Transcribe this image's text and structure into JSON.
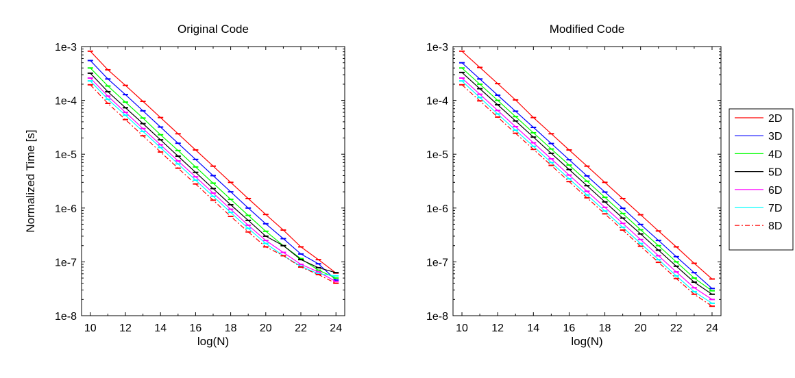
{
  "chart_data": [
    {
      "type": "line",
      "title": "Original Code",
      "xlabel": "log(N)",
      "ylabel": "Normalized Time [s]",
      "xlim": [
        9.5,
        24.5
      ],
      "ylim": [
        1e-08,
        0.001
      ],
      "yscale": "log",
      "xticks": [
        10,
        12,
        14,
        16,
        18,
        20,
        22,
        24
      ],
      "xtick_labels": [
        "10",
        "12",
        "14",
        "16",
        "18",
        "20",
        "22",
        "24"
      ],
      "yticks": [
        0.001,
        0.0001,
        1e-05,
        1e-06,
        1e-07,
        1e-08
      ],
      "ytick_labels": [
        "1e-3",
        "1e-4",
        "1e-5",
        "1e-6",
        "1e-7",
        "1e-8"
      ],
      "grid": false,
      "error_bars": true,
      "x": [
        10,
        11,
        12,
        13,
        14,
        15,
        16,
        17,
        18,
        19,
        20,
        21,
        22,
        23,
        24
      ],
      "series": [
        {
          "name": "2D",
          "color": "#ff0000",
          "dash": "solid",
          "values": [
            0.00082,
            0.00037,
            0.00019,
            9.6e-05,
            4.8e-05,
            2.4e-05,
            1.2e-05,
            6e-06,
            3e-06,
            1.5e-06,
            7.6e-07,
            3.9e-07,
            1.9e-07,
            1.1e-07,
            6.2e-08
          ]
        },
        {
          "name": "3D",
          "color": "#0000ff",
          "dash": "solid",
          "values": [
            0.00055,
            0.00025,
            0.000128,
            6.4e-05,
            3.2e-05,
            1.6e-05,
            8e-06,
            4e-06,
            2e-06,
            1e-06,
            5.1e-07,
            2.7e-07,
            1.4e-07,
            9.2e-08,
            4.6e-08
          ]
        },
        {
          "name": "4D",
          "color": "#00ff00",
          "dash": "solid",
          "values": [
            0.0004,
            0.000185,
            9.3e-05,
            4.7e-05,
            2.3e-05,
            1.17e-05,
            5.8e-06,
            2.9e-06,
            1.45e-06,
            7.3e-07,
            3.7e-07,
            2e-07,
            1.15e-07,
            7e-08,
            5e-08
          ]
        },
        {
          "name": "5D",
          "color": "#000000",
          "dash": "solid",
          "values": [
            0.00032,
            0.000145,
            7.3e-05,
            3.7e-05,
            1.85e-05,
            9.2e-06,
            4.6e-06,
            2.3e-06,
            1.15e-06,
            5.9e-07,
            3e-07,
            2e-07,
            1.1e-07,
            7.8e-08,
            6.3e-08
          ]
        },
        {
          "name": "6D",
          "color": "#ff00ff",
          "dash": "solid",
          "values": [
            0.00026,
            0.00012,
            6e-05,
            3e-05,
            1.5e-05,
            7.5e-06,
            3.8e-06,
            1.9e-06,
            9.5e-07,
            4.8e-07,
            2.5e-07,
            1.5e-07,
            9e-08,
            6.5e-08,
            4.3e-08
          ]
        },
        {
          "name": "7D",
          "color": "#00ffff",
          "dash": "solid",
          "values": [
            0.00023,
            0.000105,
            5.3e-05,
            2.65e-05,
            1.33e-05,
            6.6e-06,
            3.3e-06,
            1.65e-06,
            8.3e-07,
            4.2e-07,
            2.2e-07,
            1.3e-07,
            8.3e-08,
            6e-08,
            5.5e-08
          ]
        },
        {
          "name": "8D",
          "color": "#ff0000",
          "dash": "dashdot",
          "values": [
            0.000195,
            8.8e-05,
            4.4e-05,
            2.2e-05,
            1.1e-05,
            5.5e-06,
            2.8e-06,
            1.4e-06,
            7e-07,
            3.6e-07,
            1.9e-07,
            1.3e-07,
            8e-08,
            5.8e-08,
            4e-08
          ]
        }
      ]
    },
    {
      "type": "line",
      "title": "Modified Code",
      "xlabel": "log(N)",
      "ylabel": "",
      "xlim": [
        9.5,
        24.5
      ],
      "ylim": [
        1e-08,
        0.001
      ],
      "yscale": "log",
      "xticks": [
        10,
        12,
        14,
        16,
        18,
        20,
        22,
        24
      ],
      "xtick_labels": [
        "10",
        "12",
        "14",
        "16",
        "18",
        "20",
        "22",
        "24"
      ],
      "yticks": [
        0.001,
        0.0001,
        1e-05,
        1e-06,
        1e-07,
        1e-08
      ],
      "ytick_labels": [
        "1e-3",
        "1e-4",
        "1e-5",
        "1e-6",
        "1e-7",
        "1e-8"
      ],
      "grid": false,
      "error_bars": true,
      "legend": "outside-right",
      "x": [
        10,
        11,
        12,
        13,
        14,
        15,
        16,
        17,
        18,
        19,
        20,
        21,
        22,
        23,
        24
      ],
      "series": [
        {
          "name": "2D",
          "color": "#ff0000",
          "dash": "solid",
          "values": [
            0.00082,
            0.00041,
            0.000205,
            0.000102,
            4.8e-05,
            2.4e-05,
            1.2e-05,
            6e-06,
            3e-06,
            1.5e-06,
            7.5e-07,
            3.75e-07,
            1.9e-07,
            9.4e-08,
            4.8e-08
          ]
        },
        {
          "name": "3D",
          "color": "#0000ff",
          "dash": "solid",
          "values": [
            0.0005,
            0.00025,
            0.000125,
            6.3e-05,
            3.15e-05,
            1.58e-05,
            7.9e-06,
            3.95e-06,
            1.98e-06,
            9.9e-07,
            4.95e-07,
            2.5e-07,
            1.25e-07,
            6.3e-08,
            3.2e-08
          ]
        },
        {
          "name": "4D",
          "color": "#00ff00",
          "dash": "solid",
          "values": [
            0.0004,
            0.0002,
            0.0001,
            5e-05,
            2.5e-05,
            1.25e-05,
            6.3e-06,
            3.15e-06,
            1.58e-06,
            7.9e-07,
            3.95e-07,
            2e-07,
            1e-07,
            5e-08,
            2.9e-08
          ]
        },
        {
          "name": "5D",
          "color": "#000000",
          "dash": "solid",
          "values": [
            0.00033,
            0.000165,
            8.3e-05,
            4.15e-05,
            2.08e-05,
            1.04e-05,
            5.2e-06,
            2.6e-06,
            1.3e-06,
            6.5e-07,
            3.3e-07,
            1.65e-07,
            8.3e-08,
            4.2e-08,
            2.5e-08
          ]
        },
        {
          "name": "6D",
          "color": "#ff00ff",
          "dash": "solid",
          "values": [
            0.00026,
            0.00013,
            6.5e-05,
            3.25e-05,
            1.63e-05,
            8.2e-06,
            4.1e-06,
            2.05e-06,
            1.03e-06,
            5.2e-07,
            2.6e-07,
            1.3e-07,
            6.5e-08,
            3.3e-08,
            2e-08
          ]
        },
        {
          "name": "7D",
          "color": "#00ffff",
          "dash": "solid",
          "values": [
            0.00023,
            0.000113,
            5.6e-05,
            2.8e-05,
            1.4e-05,
            7e-06,
            3.5e-06,
            1.75e-06,
            8.8e-07,
            4.4e-07,
            2.2e-07,
            1.1e-07,
            5.5e-08,
            2.8e-08,
            1.7e-08
          ]
        },
        {
          "name": "8D",
          "color": "#ff0000",
          "dash": "dashdot",
          "values": [
            0.000195,
            9.8e-05,
            4.9e-05,
            2.45e-05,
            1.23e-05,
            6.2e-06,
            3.1e-06,
            1.55e-06,
            7.8e-07,
            3.9e-07,
            1.95e-07,
            9.8e-08,
            4.9e-08,
            2.5e-08,
            1.5e-08
          ]
        }
      ]
    }
  ]
}
